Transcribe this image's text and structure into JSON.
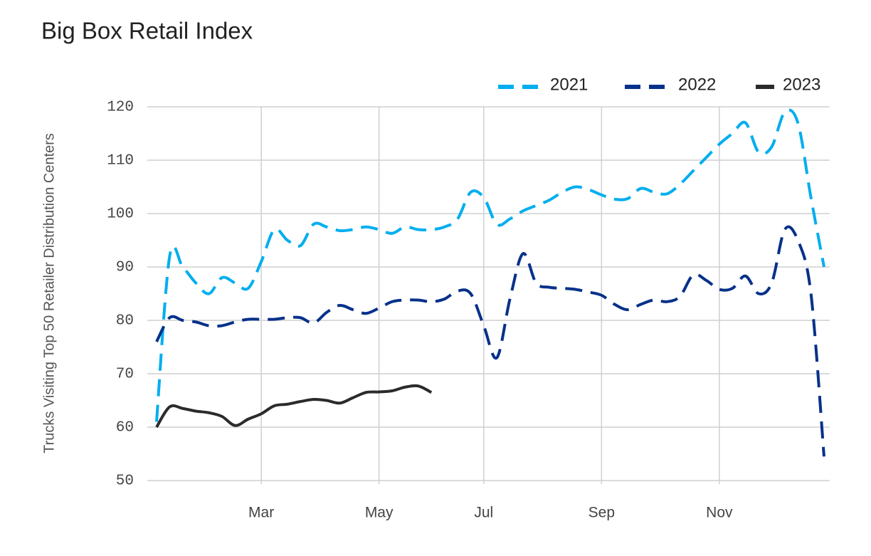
{
  "chart_data": {
    "type": "line",
    "title": "Big Box Retail Index",
    "y_label": "Trucks Visiting Top 50 Retailer Distribution Centers",
    "categories": [
      null,
      null,
      null,
      null,
      null,
      null,
      null,
      null,
      "Mar",
      null,
      null,
      null,
      null,
      null,
      null,
      null,
      null,
      "May",
      null,
      null,
      null,
      null,
      null,
      null,
      null,
      "Jul",
      null,
      null,
      null,
      null,
      null,
      null,
      null,
      null,
      "Sep",
      null,
      null,
      null,
      null,
      null,
      null,
      null,
      null,
      "Nov",
      null,
      null,
      null,
      null,
      null,
      null,
      null,
      null
    ],
    "series": [
      {
        "name": "2021",
        "color": "#00aeef",
        "dashed": true,
        "values": [
          61,
          92,
          90,
          87,
          85,
          88,
          87,
          86,
          91,
          97,
          95,
          94,
          98,
          97.5,
          96.8,
          97,
          97.5,
          97,
          96.3,
          97.5,
          97,
          97,
          97.5,
          99,
          104,
          103,
          98,
          99,
          100.5,
          101.5,
          102.5,
          104,
          105,
          104.5,
          103.5,
          102.7,
          102.8,
          104.7,
          104,
          103.7,
          105.5,
          108,
          110.5,
          113,
          115,
          117,
          111.5,
          112.5,
          119,
          117,
          103,
          90
        ]
      },
      {
        "name": "2022",
        "color": "#06318a",
        "dashed": true,
        "values": [
          76,
          80.5,
          80,
          79.7,
          79,
          79,
          79.7,
          80.2,
          80.2,
          80.2,
          80.5,
          80.5,
          79.5,
          81.5,
          82.8,
          82,
          81.3,
          82.3,
          83.5,
          83.8,
          83.8,
          83.5,
          84,
          85.5,
          85,
          79,
          73,
          84,
          92.5,
          87,
          86.2,
          86,
          85.8,
          85.3,
          84.7,
          83,
          82,
          83,
          83.8,
          83.5,
          84.5,
          88.5,
          87.5,
          85.8,
          86,
          88.3,
          85,
          87,
          97,
          95,
          85,
          54.5
        ]
      },
      {
        "name": "2023",
        "color": "#2b2b2b",
        "dashed": false,
        "values": [
          60,
          63.8,
          63.5,
          63,
          62.7,
          62,
          60.3,
          61.5,
          62.5,
          64,
          64.3,
          64.8,
          65.2,
          65,
          64.5,
          65.5,
          66.5,
          66.6,
          66.8,
          67.5,
          67.7,
          66.5,
          null,
          null,
          null,
          null,
          null,
          null,
          null,
          null,
          null,
          null,
          null,
          null,
          null,
          null,
          null,
          null,
          null,
          null,
          null,
          null,
          null,
          null,
          null,
          null,
          null,
          null,
          null,
          null,
          null,
          null
        ]
      }
    ],
    "ylim": [
      50,
      120
    ],
    "yticks": [
      50,
      60,
      70,
      80,
      90,
      100,
      110,
      120
    ],
    "grid": true,
    "legend": "top-right"
  }
}
